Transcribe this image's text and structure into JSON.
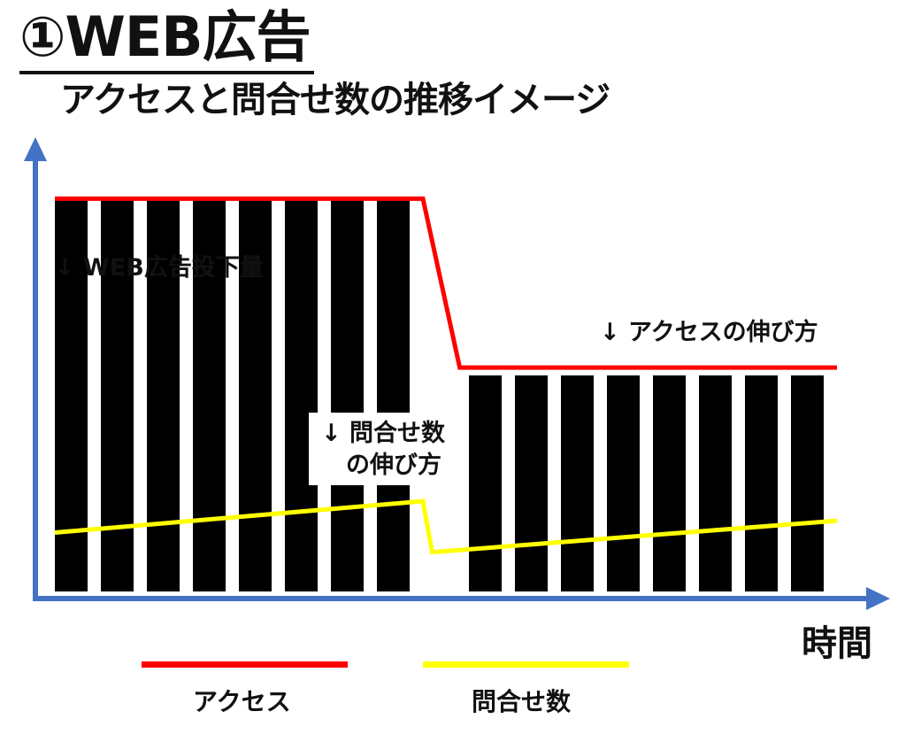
{
  "title": "①WEB広告",
  "subtitle": "アクセスと問合せ数の推移イメージ",
  "colors": {
    "axis": "#4472c4",
    "access": "#ff0000",
    "inquiries": "#ffff00",
    "bars": "#000000"
  },
  "labels": {
    "ad_volume": "↓ WEB広告投下量",
    "access_growth": "↓ アクセスの伸び方",
    "inquiry_growth_line1": "↓ 問合せ数",
    "inquiry_growth_line2": "の伸び方",
    "x_axis": "時間"
  },
  "legend": {
    "access": "アクセス",
    "inquiries": "問合せ数"
  },
  "chart_data": {
    "type": "bar",
    "series": [
      {
        "name": "WEB広告投下量",
        "kind": "bar",
        "values": [
          1,
          1,
          1,
          1,
          1,
          1,
          1,
          1,
          0,
          0.55,
          0.55,
          0.55,
          0.55,
          0.55,
          0.55,
          0.55,
          0.55
        ]
      },
      {
        "name": "アクセス",
        "kind": "line",
        "points": [
          [
            0,
            1
          ],
          [
            8,
            1
          ],
          [
            8.8,
            0.57
          ],
          [
            17,
            0.57
          ]
        ]
      },
      {
        "name": "問合せ数",
        "kind": "line",
        "points": [
          [
            0,
            0.15
          ],
          [
            8,
            0.23
          ],
          [
            8.2,
            0.1
          ],
          [
            17,
            0.18
          ]
        ]
      }
    ],
    "ylim": [
      0,
      1.1
    ],
    "xlabel": "時間"
  }
}
